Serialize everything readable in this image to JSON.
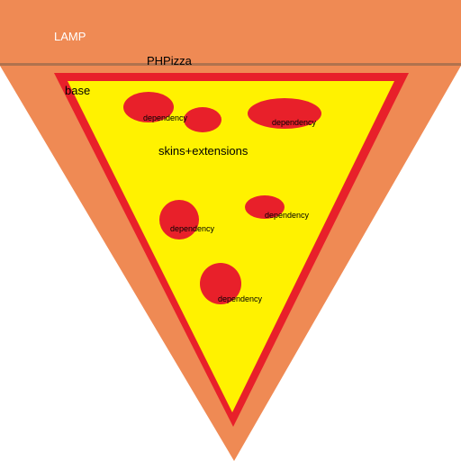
{
  "colors": {
    "crust": "#EF8A54",
    "crust_line": "#B0724E",
    "sauce": "#E8202A",
    "cheese": "#FFF200",
    "pepperoni": "#E8202A"
  },
  "labels": {
    "lamp": "LAMP",
    "phpizza": "PHPizza",
    "base": "base",
    "skins": "skins+extensions"
  },
  "dependencies": [
    {
      "label": "dependency"
    },
    {
      "label": "dependency"
    },
    {
      "label": "dependency"
    },
    {
      "label": "dependency"
    },
    {
      "label": "dependency"
    }
  ]
}
